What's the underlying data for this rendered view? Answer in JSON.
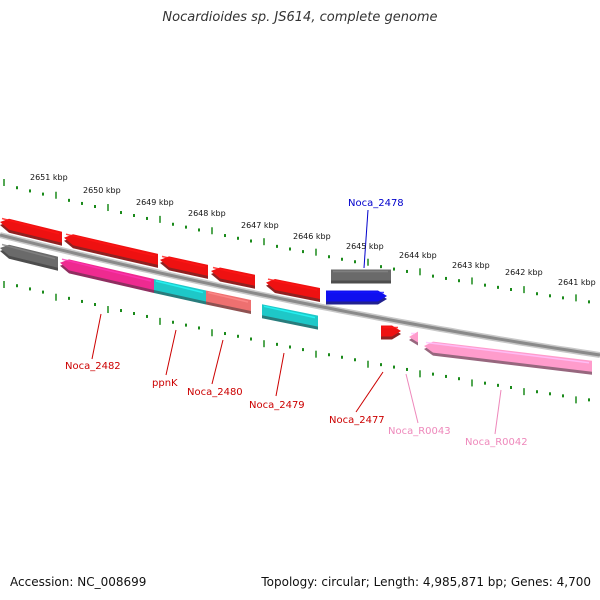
{
  "title": "Nocardioides sp. JS614, complete genome",
  "footer": {
    "accession": "Accession: NC_008699",
    "summary": "Topology: circular; Length: 4,985,871 bp; Genes: 4,700"
  },
  "colors": {
    "backbone": "#8a8a8a",
    "tick": "#1a8a1a",
    "red": "#ee1111",
    "gray": "#6a6a6a",
    "magenta": "#ee2a90",
    "cyan": "#1ec8c8",
    "salmon": "#ee7070",
    "blue": "#1010ee",
    "pink": "#ff9ccc",
    "label_red": "#cc0000",
    "label_blue": "#0000cc",
    "label_pink": "#ee88bb"
  },
  "scale_labels": [
    "2651 kbp",
    "2650 kbp",
    "2649 kbp",
    "2648 kbp",
    "2647 kbp",
    "2646 kbp",
    "2645 kbp",
    "2644 kbp",
    "2643 kbp",
    "2642 kbp",
    "2641 kbp"
  ],
  "gene_labels": [
    {
      "text": "Noca_2478",
      "color": "label_blue"
    },
    {
      "text": "Noca_2482",
      "color": "label_red"
    },
    {
      "text": "ppnK",
      "color": "label_red"
    },
    {
      "text": "Noca_2480",
      "color": "label_red"
    },
    {
      "text": "Noca_2479",
      "color": "label_red"
    },
    {
      "text": "Noca_2477",
      "color": "label_red"
    },
    {
      "text": "Noca_R0043",
      "color": "label_pink"
    },
    {
      "text": "Noca_R0042",
      "color": "label_pink"
    }
  ]
}
